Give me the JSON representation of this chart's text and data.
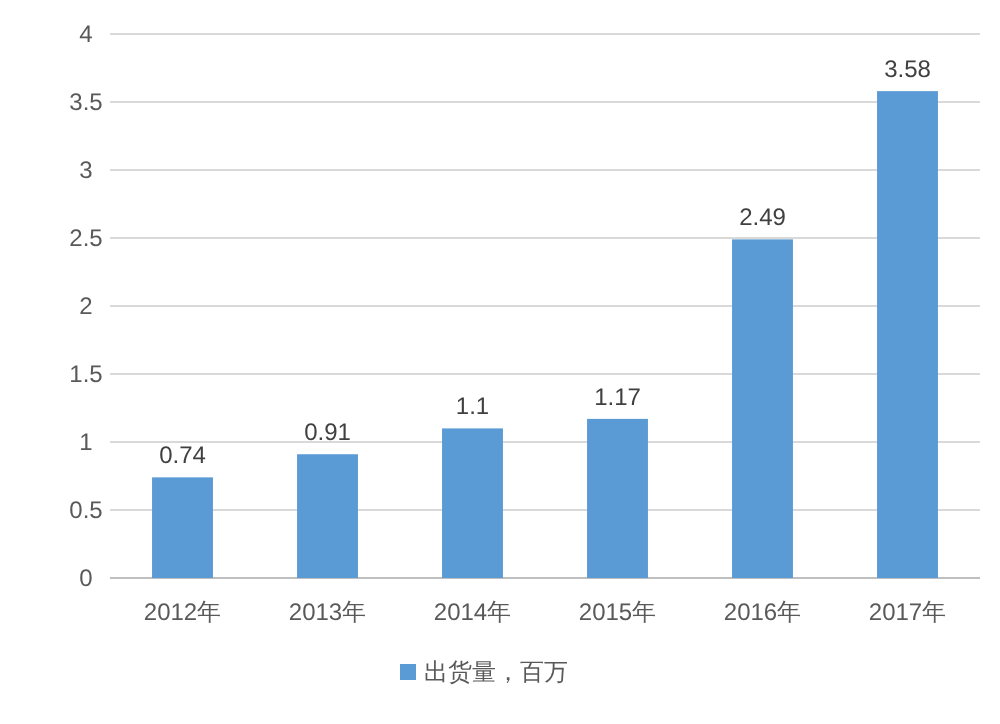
{
  "chart_data": {
    "type": "bar",
    "categories": [
      "2012年",
      "2013年",
      "2014年",
      "2015年",
      "2016年",
      "2017年"
    ],
    "series": [
      {
        "name": "出货量，百万",
        "color": "#5b9bd5",
        "values": [
          0.74,
          0.91,
          1.1,
          1.17,
          2.49,
          3.58
        ]
      }
    ],
    "data_labels": true,
    "ylim": [
      0,
      4
    ],
    "yticks": [
      0,
      {
        "value": 0.5,
        "label": "0.5"
      },
      1,
      {
        "value": 1.5,
        "label": "1.5"
      },
      2,
      {
        "value": 2.5,
        "label": "2.5"
      },
      3,
      {
        "value": 3.5,
        "label": "3.5"
      },
      4
    ],
    "grid": "y",
    "legend": "bottom"
  }
}
